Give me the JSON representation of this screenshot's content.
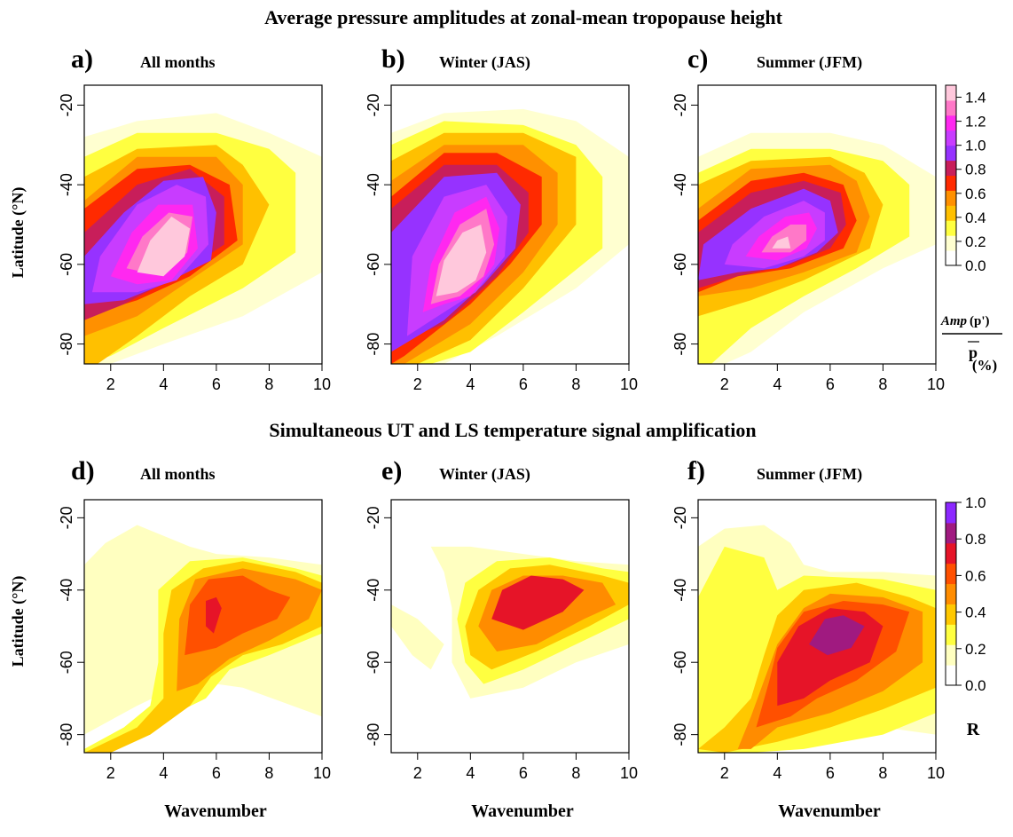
{
  "figure": {
    "row_titles": [
      "Average pressure amplitudes at zonal-mean tropopause height",
      "Simultaneous UT and LS temperature signal amplification"
    ],
    "axis": {
      "ylabel": "Latitude (°N)",
      "xlabel": "Wavenumber",
      "x_ticks": [
        "2",
        "4",
        "6",
        "8",
        "10"
      ],
      "y_ticks": [
        "-20",
        "-40",
        "-60",
        "-80"
      ]
    },
    "colorbars": [
      {
        "ticks": [
          "1.4",
          "1.2",
          "1.0",
          "0.8",
          "0.6",
          "0.4",
          "0.2",
          "0.0"
        ],
        "label_amp": "Amp",
        "label_p": "(p')",
        "label_pbar": "p",
        "label_unit": "(%)"
      },
      {
        "ticks": [
          "1.0",
          "0.8",
          "0.6",
          "0.4",
          "0.2",
          "0.0"
        ],
        "label": "R"
      }
    ]
  },
  "chart_data": [
    {
      "type": "heatmap",
      "panel": "a)",
      "title": "All months",
      "xlabel": "",
      "ylabel": "Latitude (°N)",
      "xlim": [
        1,
        10
      ],
      "ylim": [
        -85,
        -15
      ],
      "colorbar_range": [
        0,
        1.5
      ],
      "peak": {
        "wavenumber": 4,
        "latitude": -55,
        "value": 1.3
      }
    },
    {
      "type": "heatmap",
      "panel": "b)",
      "title": "Winter (JAS)",
      "xlabel": "",
      "ylabel": "",
      "xlim": [
        1,
        10
      ],
      "ylim": [
        -85,
        -15
      ],
      "colorbar_range": [
        0,
        1.5
      ],
      "peak": {
        "wavenumber": 3.8,
        "latitude": -57,
        "value": 1.4
      }
    },
    {
      "type": "heatmap",
      "panel": "c)",
      "title": "Summer (JFM)",
      "xlabel": "",
      "ylabel": "",
      "xlim": [
        1,
        10
      ],
      "ylim": [
        -85,
        -15
      ],
      "colorbar_range": [
        0,
        1.5
      ],
      "peak": {
        "wavenumber": 4.5,
        "latitude": -54,
        "value": 1.25
      }
    },
    {
      "type": "heatmap",
      "panel": "d)",
      "title": "All months",
      "xlabel": "Wavenumber",
      "ylabel": "Latitude (°N)",
      "xlim": [
        1,
        10
      ],
      "ylim": [
        -85,
        -15
      ],
      "colorbar_range": [
        0,
        1.0
      ],
      "peak": {
        "wavenumber": 6,
        "latitude": -45,
        "value": 0.8
      }
    },
    {
      "type": "heatmap",
      "panel": "e)",
      "title": "Winter (JAS)",
      "xlabel": "Wavenumber",
      "ylabel": "",
      "xlim": [
        1,
        10
      ],
      "ylim": [
        -85,
        -15
      ],
      "colorbar_range": [
        0,
        1.0
      ],
      "peak": {
        "wavenumber": 6.5,
        "latitude": -43,
        "value": 0.75
      }
    },
    {
      "type": "heatmap",
      "panel": "f)",
      "title": "Summer (JFM)",
      "xlabel": "Wavenumber",
      "ylabel": "",
      "xlim": [
        1,
        10
      ],
      "ylim": [
        -85,
        -15
      ],
      "colorbar_range": [
        0,
        1.0
      ],
      "peak": {
        "wavenumber": 6.2,
        "latitude": -51,
        "value": 0.85
      }
    }
  ],
  "colors": {
    "pressure_scale": [
      "#ffffff",
      "#ffffd0",
      "#ffff40",
      "#ffc000",
      "#ff9000",
      "#ff2a00",
      "#c81e5a",
      "#9632ff",
      "#c83cff",
      "#ff28f0",
      "#ff78c8",
      "#ffc8dc"
    ],
    "r_scale": [
      "#ffffff",
      "#ffffc0",
      "#ffff40",
      "#ffc800",
      "#ff8c00",
      "#ff5000",
      "#e61428",
      "#a01a80",
      "#8c28ff"
    ]
  }
}
